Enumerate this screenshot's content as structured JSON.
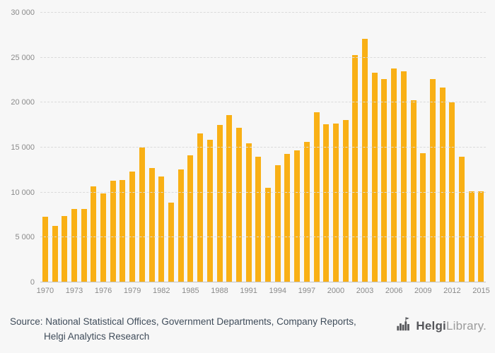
{
  "chart_data": {
    "type": "bar",
    "title": "",
    "xlabel": "",
    "ylabel": "",
    "bar_color": "#F9B015",
    "ylim": [
      0,
      30000
    ],
    "yticks": [
      {
        "value": 0,
        "label": "0"
      },
      {
        "value": 5000,
        "label": "5 000"
      },
      {
        "value": 10000,
        "label": "10 000"
      },
      {
        "value": 15000,
        "label": "15 000"
      },
      {
        "value": 20000,
        "label": "20 000"
      },
      {
        "value": 25000,
        "label": "25 000"
      },
      {
        "value": 30000,
        "label": "30 000"
      }
    ],
    "x": [
      1970,
      1971,
      1972,
      1973,
      1974,
      1975,
      1976,
      1977,
      1978,
      1979,
      1980,
      1981,
      1982,
      1983,
      1984,
      1985,
      1986,
      1987,
      1988,
      1989,
      1990,
      1991,
      1992,
      1993,
      1994,
      1995,
      1996,
      1997,
      1998,
      1999,
      2000,
      2001,
      2002,
      2003,
      2004,
      2005,
      2006,
      2007,
      2008,
      2009,
      2010,
      2011,
      2012,
      2013,
      2014,
      2015
    ],
    "values": [
      7300,
      6300,
      7400,
      8200,
      8200,
      10700,
      9900,
      11300,
      11400,
      12300,
      15000,
      12700,
      11800,
      8900,
      12600,
      14100,
      16600,
      15900,
      17500,
      18600,
      17200,
      15500,
      14000,
      10500,
      13000,
      14300,
      14700,
      15600,
      18900,
      17600,
      17700,
      18100,
      25300,
      27100,
      23300,
      22600,
      23800,
      23500,
      20300,
      14400,
      22600,
      21700,
      20000,
      14000,
      10100,
      10100
    ],
    "xtick_labels": [
      "1970",
      "1973",
      "1976",
      "1979",
      "1982",
      "1985",
      "1988",
      "1991",
      "1994",
      "1997",
      "2000",
      "2003",
      "2006",
      "2009",
      "2012",
      "2015"
    ],
    "grid": "horizontal",
    "legend": "none"
  },
  "footer": {
    "source_line1": "Source: National Statistical Offices, Government Departments, Company Reports,",
    "source_line2": "Helgi Analytics Research"
  },
  "logo": {
    "helgi": "Helgi",
    "library": "Library."
  }
}
